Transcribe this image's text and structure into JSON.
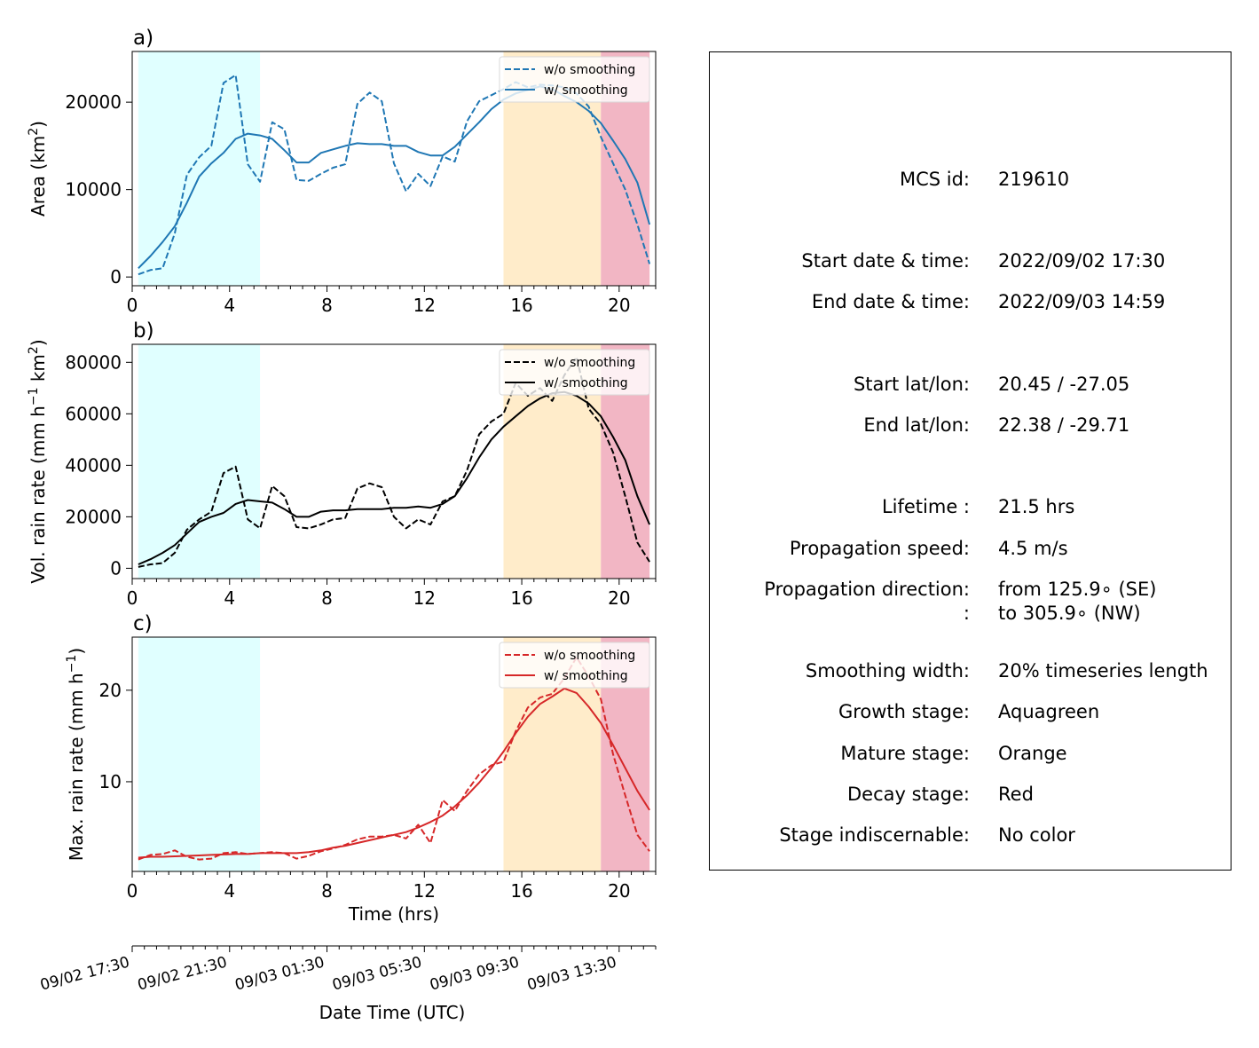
{
  "chart_data": [
    {
      "type": "line",
      "panel_label": "a)",
      "ylabel": "Area  (km",
      "ylabel_sup": "2",
      "ylabel_end": ")",
      "xlabel": "",
      "xlim": [
        0,
        21.5
      ],
      "ylim": [
        -1000,
        25800
      ],
      "xticks": [
        "0",
        "4",
        "8",
        "12",
        "16",
        "20"
      ],
      "yticks": [
        "0",
        "10000",
        "20000"
      ],
      "x": [
        0.25,
        0.75,
        1.25,
        1.75,
        2.25,
        2.75,
        3.25,
        3.75,
        4.25,
        4.75,
        5.25,
        5.75,
        6.25,
        6.75,
        7.25,
        7.75,
        8.25,
        8.75,
        9.25,
        9.75,
        10.25,
        10.75,
        11.25,
        11.75,
        12.25,
        12.75,
        13.25,
        13.75,
        14.25,
        14.75,
        15.25,
        15.75,
        16.25,
        16.75,
        17.25,
        17.75,
        18.25,
        18.75,
        19.25,
        19.75,
        20.25,
        20.75,
        21.25
      ],
      "series": [
        {
          "name": "w/o smoothing",
          "style": "dashed",
          "color": "#1f77b4",
          "values": [
            300,
            800,
            1000,
            5000,
            11700,
            13700,
            15000,
            22200,
            23100,
            12900,
            10900,
            17700,
            16900,
            11100,
            11000,
            11800,
            12500,
            12900,
            19800,
            21100,
            20100,
            13000,
            9800,
            11800,
            10400,
            13800,
            13200,
            17800,
            20100,
            20800,
            21500,
            22300,
            21700,
            22000,
            21900,
            21700,
            21000,
            19500,
            16000,
            13000,
            10000,
            6000,
            1500
          ]
        },
        {
          "name": "w/ smoothing",
          "style": "solid",
          "color": "#1f77b4",
          "values": [
            1000,
            2400,
            4000,
            5800,
            8500,
            11500,
            13000,
            14200,
            15800,
            16400,
            16200,
            15800,
            14500,
            13100,
            13100,
            14200,
            14600,
            15000,
            15300,
            15200,
            15200,
            15000,
            15000,
            14300,
            13900,
            13900,
            14900,
            16300,
            17700,
            19200,
            20300,
            21000,
            21400,
            21800,
            21500,
            20700,
            20000,
            19000,
            17600,
            15600,
            13500,
            10800,
            6000
          ]
        }
      ],
      "legend": "upper right"
    },
    {
      "type": "line",
      "panel_label": "b)",
      "ylabel": "Vol. rain rate (mm h",
      "ylabel_sup1": "−1",
      "ylabel_mid": " km",
      "ylabel_sup2": "2",
      "ylabel_end": ")",
      "xlabel": "",
      "xlim": [
        0,
        21.5
      ],
      "ylim": [
        -4000,
        87000
      ],
      "xticks": [
        "0",
        "4",
        "8",
        "12",
        "16",
        "20"
      ],
      "yticks": [
        "0",
        "20000",
        "40000",
        "60000",
        "80000"
      ],
      "x": [
        0.25,
        0.75,
        1.25,
        1.75,
        2.25,
        2.75,
        3.25,
        3.75,
        4.25,
        4.75,
        5.25,
        5.75,
        6.25,
        6.75,
        7.25,
        7.75,
        8.25,
        8.75,
        9.25,
        9.75,
        10.25,
        10.75,
        11.25,
        11.75,
        12.25,
        12.75,
        13.25,
        13.75,
        14.25,
        14.75,
        15.25,
        15.75,
        16.25,
        16.75,
        17.25,
        17.75,
        18.25,
        18.75,
        19.25,
        19.75,
        20.25,
        20.75,
        21.25
      ],
      "series": [
        {
          "name": "w/o smoothing",
          "style": "dashed",
          "color": "#000000",
          "values": [
            500,
            1500,
            2000,
            6000,
            15000,
            19000,
            22000,
            37000,
            39500,
            19000,
            15500,
            32000,
            28000,
            16000,
            15500,
            17000,
            19000,
            19500,
            31000,
            33000,
            31500,
            20000,
            15500,
            19000,
            17000,
            26000,
            28000,
            38000,
            52000,
            57000,
            60000,
            72000,
            67000,
            70000,
            65000,
            75000,
            82000,
            62000,
            56000,
            45000,
            28000,
            10000,
            2500
          ]
        },
        {
          "name": "w/ smoothing",
          "style": "solid",
          "color": "#000000",
          "values": [
            1500,
            3500,
            6000,
            9000,
            13500,
            18000,
            20000,
            21500,
            25000,
            26500,
            26000,
            25500,
            23000,
            20000,
            20000,
            22000,
            22500,
            22500,
            23000,
            23000,
            23000,
            23500,
            23500,
            24000,
            23500,
            25000,
            28000,
            35000,
            43000,
            50000,
            55000,
            59000,
            63000,
            66000,
            68000,
            68500,
            67000,
            64000,
            59000,
            51000,
            42000,
            28000,
            17000
          ]
        }
      ],
      "legend": "upper right"
    },
    {
      "type": "line",
      "panel_label": "c)",
      "ylabel": "Max. rain rate  (mm h",
      "ylabel_sup": "−1",
      "ylabel_end": ")",
      "xlabel": "Time (hrs)",
      "xlim": [
        0,
        21.5
      ],
      "ylim": [
        0.2,
        25.8
      ],
      "xticks": [
        "0",
        "4",
        "8",
        "12",
        "16",
        "20"
      ],
      "yticks": [
        "10",
        "20"
      ],
      "x": [
        0.25,
        0.75,
        1.25,
        1.75,
        2.25,
        2.75,
        3.25,
        3.75,
        4.25,
        4.75,
        5.25,
        5.75,
        6.25,
        6.75,
        7.25,
        7.75,
        8.25,
        8.75,
        9.25,
        9.75,
        10.25,
        10.75,
        11.25,
        11.75,
        12.25,
        12.75,
        13.25,
        13.75,
        14.25,
        14.75,
        15.25,
        15.75,
        16.25,
        16.75,
        17.25,
        17.75,
        18.25,
        18.75,
        19.25,
        19.75,
        20.25,
        20.75,
        21.25
      ],
      "series": [
        {
          "name": "w/o smoothing",
          "style": "dashed",
          "color": "#d62728",
          "values": [
            1.5,
            2.0,
            2.1,
            2.5,
            1.8,
            1.5,
            1.6,
            2.2,
            2.3,
            2.1,
            2.2,
            2.3,
            2.2,
            1.6,
            1.9,
            2.4,
            2.7,
            3.1,
            3.7,
            4.0,
            4.0,
            4.2,
            3.8,
            5.3,
            3.3,
            8.0,
            6.8,
            9.0,
            10.8,
            11.8,
            12.2,
            15.5,
            18.1,
            19.2,
            19.6,
            21.3,
            23.6,
            21.5,
            19.0,
            13.0,
            8.5,
            4.2,
            2.4
          ]
        },
        {
          "name": "w/ smoothing",
          "style": "solid",
          "color": "#d62728",
          "values": [
            1.7,
            1.8,
            1.8,
            1.85,
            1.9,
            1.95,
            2.0,
            2.05,
            2.1,
            2.1,
            2.2,
            2.2,
            2.2,
            2.2,
            2.3,
            2.5,
            2.8,
            3.0,
            3.3,
            3.6,
            3.9,
            4.2,
            4.5,
            5.0,
            5.6,
            6.3,
            7.3,
            8.5,
            9.9,
            11.5,
            13.3,
            15.3,
            17.1,
            18.5,
            19.3,
            20.2,
            19.7,
            18.2,
            16.4,
            14.0,
            11.5,
            9.0,
            6.9
          ]
        }
      ],
      "legend": "upper right"
    }
  ],
  "stages": {
    "growth": {
      "x0": 0.25,
      "x1": 5.25,
      "color": "#e0ffff"
    },
    "mature": {
      "x0": 15.25,
      "x1": 19.25,
      "color": "#ffecca"
    },
    "decay": {
      "x0": 19.25,
      "x1": 21.25,
      "color": "#f2b6c4"
    }
  },
  "datetime_axis": {
    "xlabel": "Date Time (UTC)",
    "ticklabels": [
      "09/02 17:30",
      "09/02 21:30",
      "09/03 01:30",
      "09/03 05:30",
      "09/03 09:30",
      "09/03 13:30"
    ]
  },
  "info": {
    "mcs_id_label": "MCS id:",
    "mcs_id": "219610",
    "start_dt_label": "Start date & time:",
    "start_dt": "2022/09/02 17:30",
    "end_dt_label": "End date & time:",
    "end_dt": "2022/09/03 14:59",
    "start_ll_label": "Start lat/lon:",
    "start_ll": "20.45 / -27.05",
    "end_ll_label": "End lat/lon:",
    "end_ll": "22.38 / -29.71",
    "lifetime_label": "Lifetime :",
    "lifetime": "21.5 hrs",
    "speed_label": "Propagation speed:",
    "speed": "4.5 m/s",
    "direction_label": "Propagation direction:",
    "direction_from": "from 125.9∘ (SE)",
    "direction_colon": ":",
    "direction_to": "to   305.9∘ (NW)",
    "smoothing_label": "Smoothing width:",
    "smoothing": "20% timeseries length",
    "growth_label": "Growth stage:",
    "growth": "Aquagreen",
    "mature_label": "Mature stage:",
    "mature": "Orange",
    "decay_label": "Decay stage:",
    "decay": "Red",
    "indisc_label": "Stage indiscernable:",
    "indisc": "No color"
  }
}
